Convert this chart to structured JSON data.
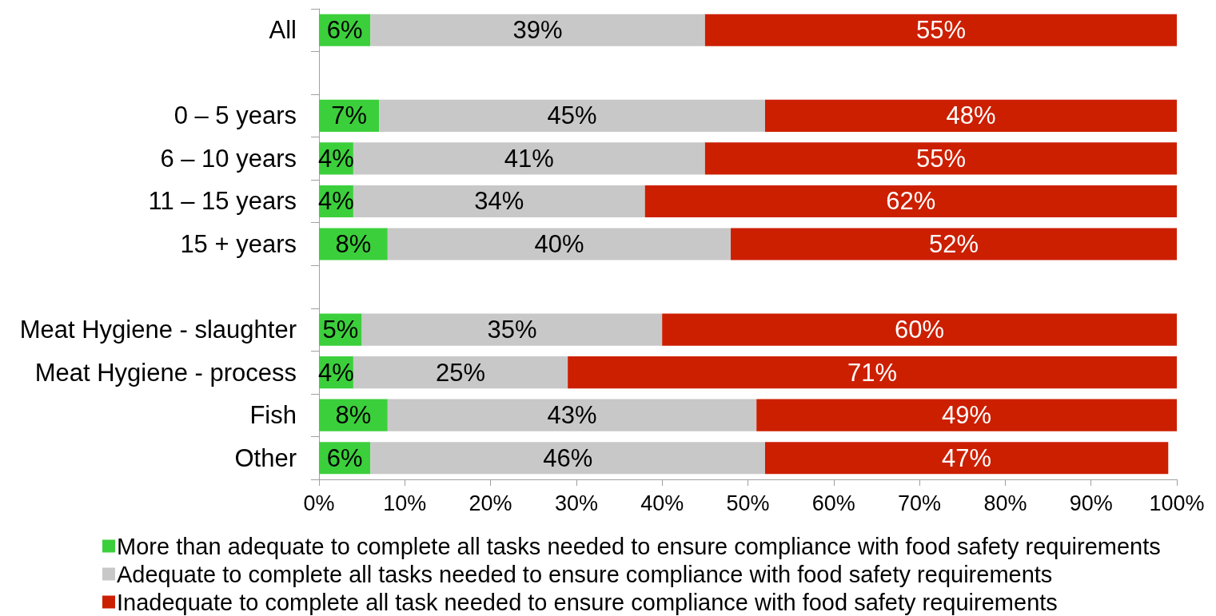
{
  "chart_data": {
    "type": "bar",
    "orientation": "horizontal",
    "stacked": true,
    "categories": [
      "All",
      null,
      "0 – 5 years",
      "6 – 10 years",
      "11 – 15 years",
      "15 + years",
      null,
      "Meat Hygiene - slaughter",
      "Meat Hygiene - process",
      "Fish",
      "Other"
    ],
    "series": [
      {
        "name": "More than adequate to complete all tasks needed to ensure compliance with food safety requirements",
        "color": "#3ccf3c",
        "values": [
          6,
          null,
          7,
          4,
          4,
          8,
          null,
          5,
          4,
          8,
          6
        ],
        "value_labels": [
          "6%",
          null,
          "7%",
          "4%",
          "4%",
          "8%",
          null,
          "5%",
          "4%",
          "8%",
          "6%"
        ]
      },
      {
        "name": "Adequate to complete all tasks needed to ensure compliance with food safety requirements",
        "color": "#c8c8c8",
        "values": [
          39,
          null,
          45,
          41,
          34,
          40,
          null,
          35,
          25,
          43,
          46
        ],
        "value_labels": [
          "39%",
          null,
          "45%",
          "41%",
          "34%",
          "40%",
          null,
          "35%",
          "25%",
          "43%",
          "46%"
        ]
      },
      {
        "name": "Inadequate to complete all task needed to ensure compliance with food safety requirements",
        "color": "#cc1f00",
        "values": [
          55,
          null,
          48,
          55,
          62,
          52,
          null,
          60,
          71,
          49,
          47
        ],
        "value_labels": [
          "55%",
          null,
          "48%",
          "55%",
          "62%",
          "52%",
          null,
          "60%",
          "71%",
          "49%",
          "47%"
        ]
      }
    ],
    "xlim": [
      0,
      100
    ],
    "xticks": [
      {
        "value": 0,
        "label": "0%"
      },
      {
        "value": 10,
        "label": "10%"
      },
      {
        "value": 20,
        "label": "20%"
      },
      {
        "value": 30,
        "label": "30%"
      },
      {
        "value": 40,
        "label": "40%"
      },
      {
        "value": 50,
        "label": "50%"
      },
      {
        "value": 60,
        "label": "60%"
      },
      {
        "value": 70,
        "label": "70%"
      },
      {
        "value": 80,
        "label": "80%"
      },
      {
        "value": 90,
        "label": "90%"
      },
      {
        "value": 100,
        "label": "100%"
      }
    ],
    "grid": false,
    "legend": "bottom"
  }
}
